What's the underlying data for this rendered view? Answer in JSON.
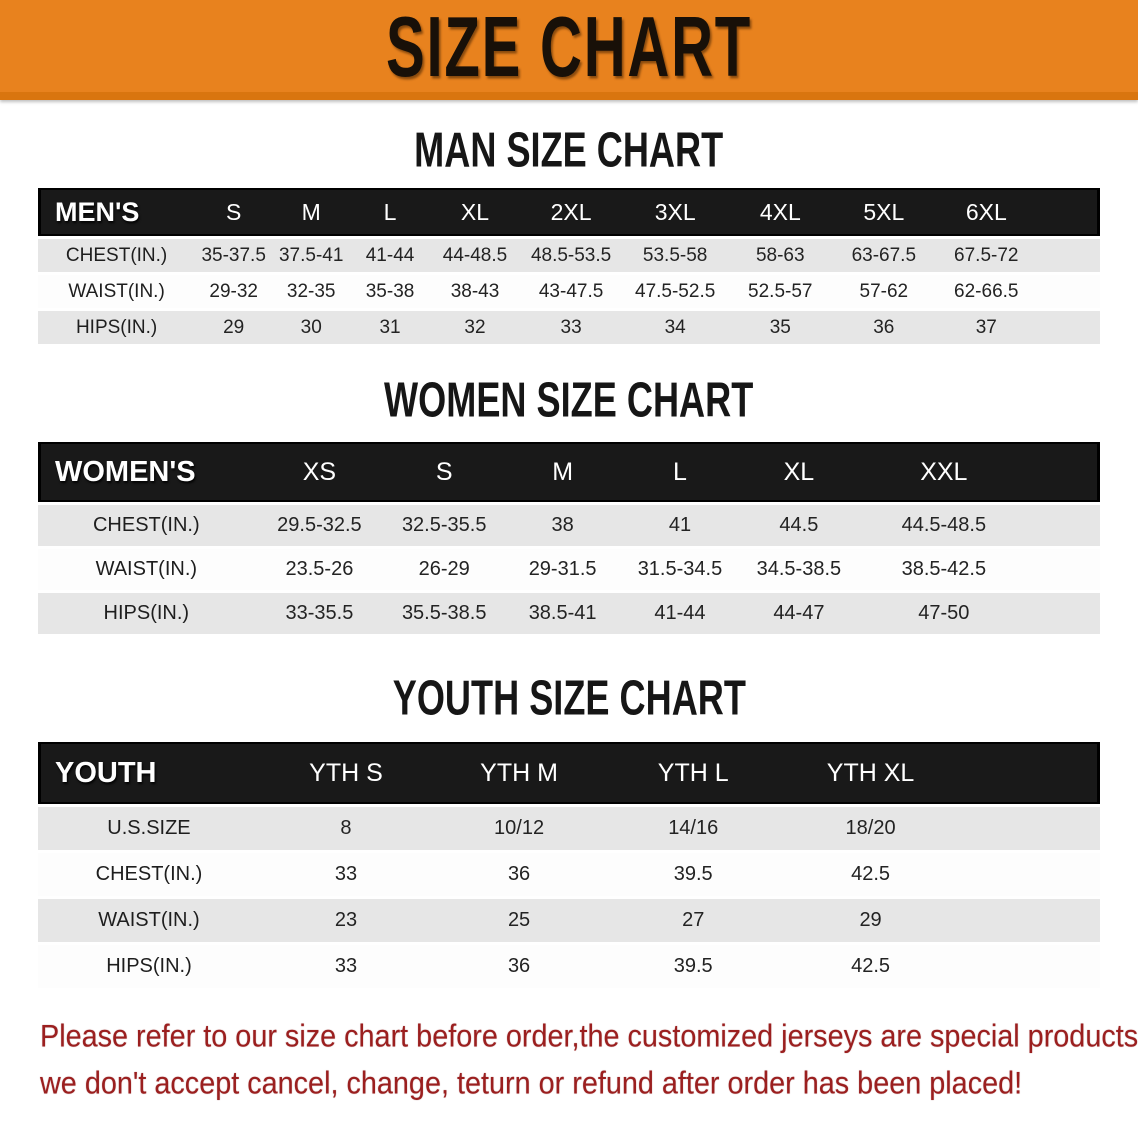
{
  "banner": {
    "title": "SIZE CHART"
  },
  "sections": [
    {
      "key": "mens",
      "title": "MAN SIZE CHART",
      "header_label": "MEN'S",
      "columns": [
        "S",
        "M",
        "L",
        "XL",
        "2XL",
        "3XL",
        "4XL",
        "5XL",
        "6XL"
      ],
      "rows": [
        {
          "label": "CHEST(IN.)",
          "values": [
            "35-37.5",
            "37.5-41",
            "41-44",
            "44-48.5",
            "48.5-53.5",
            "53.5-58",
            "58-63",
            "63-67.5",
            "67.5-72"
          ]
        },
        {
          "label": "WAIST(IN.)",
          "values": [
            "29-32",
            "32-35",
            "35-38",
            "38-43",
            "43-47.5",
            "47.5-52.5",
            "52.5-57",
            "57-62",
            "62-66.5"
          ]
        },
        {
          "label": "HIPS(IN.)",
          "values": [
            "29",
            "30",
            "31",
            "32",
            "33",
            "34",
            "35",
            "36",
            "37"
          ]
        }
      ]
    },
    {
      "key": "womens",
      "title": "WOMEN SIZE CHART",
      "header_label": "WOMEN'S",
      "columns": [
        "XS",
        "S",
        "M",
        "L",
        "XL",
        "XXL"
      ],
      "rows": [
        {
          "label": "CHEST(IN.)",
          "values": [
            "29.5-32.5",
            "32.5-35.5",
            "38",
            "41",
            "44.5",
            "44.5-48.5"
          ]
        },
        {
          "label": "WAIST(IN.)",
          "values": [
            "23.5-26",
            "26-29",
            "29-31.5",
            "31.5-34.5",
            "34.5-38.5",
            "38.5-42.5"
          ]
        },
        {
          "label": "HIPS(IN.)",
          "values": [
            "33-35.5",
            "35.5-38.5",
            "38.5-41",
            "41-44",
            "44-47",
            "47-50"
          ]
        }
      ]
    },
    {
      "key": "youth",
      "title": "YOUTH SIZE CHART",
      "header_label": "YOUTH",
      "columns": [
        "YTH S",
        "YTH M",
        "YTH L",
        "YTH XL"
      ],
      "rows": [
        {
          "label": "U.S.SIZE",
          "values": [
            "8",
            "10/12",
            "14/16",
            "18/20"
          ]
        },
        {
          "label": "CHEST(IN.)",
          "values": [
            "33",
            "36",
            "39.5",
            "42.5"
          ]
        },
        {
          "label": "WAIST(IN.)",
          "values": [
            "23",
            "25",
            "27",
            "29"
          ]
        },
        {
          "label": "HIPS(IN.)",
          "values": [
            "33",
            "36",
            "39.5",
            "42.5"
          ]
        }
      ]
    }
  ],
  "footer": {
    "line1": "Please refer to our size chart before order,the customized jerseys are special products,",
    "line2": "we don't accept cancel, change, teturn or refund after order has been placed!"
  },
  "colors": {
    "banner_bg": "#e8821e",
    "banner_text": "#181008",
    "table_header_bg": "#191919",
    "table_header_text": "#ffffff",
    "row_shaded_bg": "#e6e6e6",
    "row_plain_bg": "#fdfdfd",
    "footer_text": "#9b1f1f"
  }
}
